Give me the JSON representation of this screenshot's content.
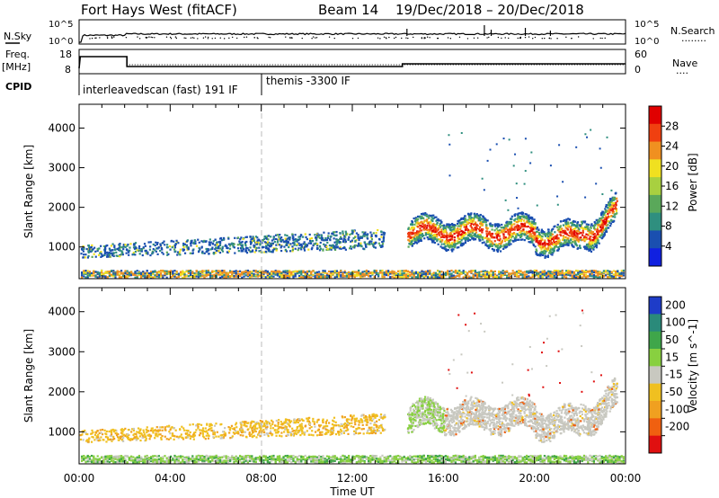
{
  "header": {
    "title": "Fort Hays West (fitACF)",
    "beam": "Beam 14",
    "date_range": "19/Dec/2018 – 20/Dec/2018"
  },
  "side_labels": {
    "nsky": "N.Sky",
    "nsearch": "N.Search",
    "nsearch_dots": "........",
    "freq": "Freq.",
    "mhz": "[MHz]",
    "cpid": "CPID",
    "nave": "Nave",
    "nave_dots": "....",
    "noise_tick_high_left": "10^5",
    "noise_tick_low_left": "10^0",
    "noise_tick_high_right": "10^5",
    "noise_tick_low_right": "10^0",
    "freq_tick_high": "18",
    "freq_tick_low": "8",
    "nave_tick_high": "60",
    "nave_tick_low": "0"
  },
  "cpid_labels": {
    "first": "interleavedscan (fast) 191 IF",
    "second": "themis -3300 IF"
  },
  "chart_data": [
    {
      "type": "heatmap",
      "panel": "power",
      "ylabel": "Slant Range [km]",
      "xlabel": "Time UT",
      "x_ticks": [
        "00:00",
        "04:00",
        "08:00",
        "12:00",
        "16:00",
        "20:00",
        "00:00"
      ],
      "y_ticks": [
        1000,
        2000,
        3000,
        4000
      ],
      "ylim": [
        200,
        4600
      ],
      "xlim_hours": [
        0,
        24
      ],
      "colorbar_label": "Power [dB]",
      "colorbar_ticks": [
        4,
        8,
        12,
        16,
        20,
        24,
        28
      ],
      "colorbar_range": [
        0,
        30
      ],
      "colors": [
        "#1020e0",
        "#1a4fb0",
        "#2f8f7f",
        "#5aa85a",
        "#a8d040",
        "#f0e020",
        "#f09020",
        "#f04010",
        "#e00000"
      ],
      "features": [
        {
          "name": "ground scatter band",
          "hours": [
            0,
            24
          ],
          "range_km": [
            250,
            420
          ],
          "power_db": 18
        },
        {
          "name": "early echoes",
          "hours": [
            0,
            13.5
          ],
          "range_km": [
            700,
            1400
          ],
          "power_db": 10
        },
        {
          "name": "evening band",
          "hours": [
            14.4,
            23.6
          ],
          "range_km": [
            900,
            2100
          ],
          "power_db": 22
        }
      ]
    },
    {
      "type": "heatmap",
      "panel": "velocity",
      "ylabel": "Slant Range [km]",
      "xlabel": "Time UT",
      "x_ticks": [
        "00:00",
        "04:00",
        "08:00",
        "12:00",
        "16:00",
        "20:00",
        "00:00"
      ],
      "y_ticks": [
        1000,
        2000,
        3000,
        4000
      ],
      "ylim": [
        200,
        4600
      ],
      "xlim_hours": [
        0,
        24
      ],
      "colorbar_label": "Velocity [m s^-1]",
      "colorbar_ticks": [
        200,
        100,
        50,
        15,
        -15,
        -50,
        -100,
        -200
      ],
      "colors": [
        "#1e3cc8",
        "#2a8a7a",
        "#3fa64a",
        "#88d040",
        "#c8c8c0",
        "#f0c020",
        "#f0a020",
        "#f06010",
        "#e01010"
      ],
      "features": [
        {
          "name": "ground scatter band",
          "hours": [
            0,
            24
          ],
          "range_km": [
            250,
            420
          ],
          "velocity": 15
        },
        {
          "name": "early echoes",
          "hours": [
            0,
            13.5
          ],
          "range_km": [
            700,
            1400
          ],
          "velocity": -50
        },
        {
          "name": "evening band",
          "hours": [
            14.4,
            23.6
          ],
          "range_km": [
            900,
            2100
          ],
          "velocity": 0
        }
      ]
    }
  ],
  "axis": {
    "xlabel": "Time UT",
    "x_ticks": [
      "00:00",
      "04:00",
      "08:00",
      "12:00",
      "16:00",
      "20:00",
      "00:00"
    ]
  }
}
